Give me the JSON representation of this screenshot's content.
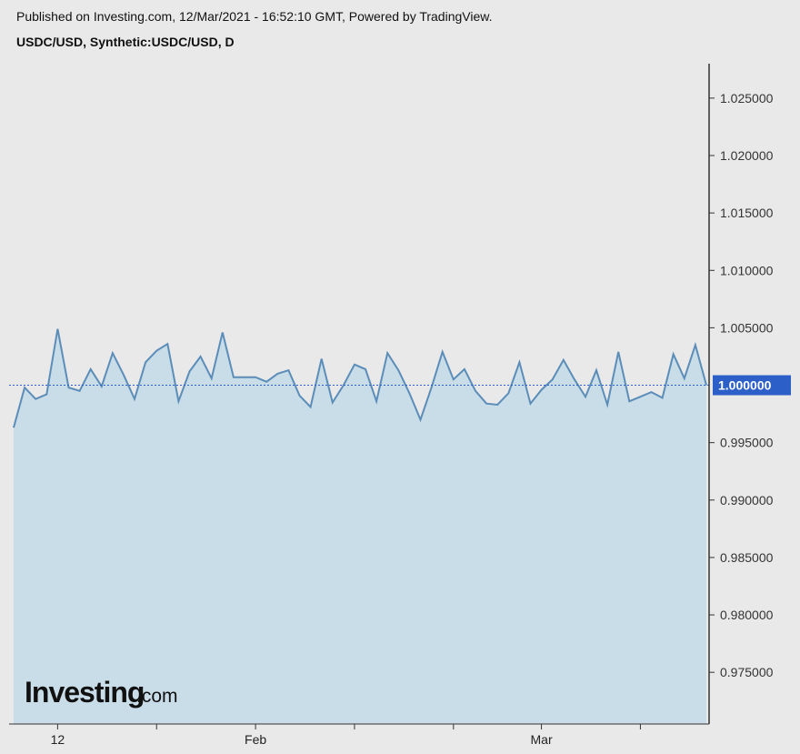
{
  "header": {
    "published": "Published on Investing.com, 12/Mar/2021 - 16:52:10 GMT, Powered by TradingView.",
    "symbol": "USDC/USD, Synthetic:USDC/USD, D"
  },
  "logo": {
    "main": "Investing",
    "suffix": ".com"
  },
  "colors": {
    "line": "#5b8db8",
    "area": "#c8dde8",
    "price_tag": "#2c5fc7",
    "ref_line": "#2c5fc7",
    "axis": "#333333"
  },
  "chart_data": {
    "type": "area",
    "title": "USDC/USD, Synthetic:USDC/USD, D",
    "xlabel": "",
    "ylabel": "",
    "x_tick_labels": [
      "12",
      "Feb",
      "Mar"
    ],
    "y_tick_labels": [
      "1.025000",
      "1.020000",
      "1.015000",
      "1.010000",
      "1.005000",
      "0.995000",
      "0.990000",
      "0.985000",
      "0.980000",
      "0.975000"
    ],
    "y_ticks": [
      1.025,
      1.02,
      1.015,
      1.01,
      1.005,
      0.995,
      0.99,
      0.985,
      0.98,
      0.975
    ],
    "ylim": [
      0.9705,
      1.028
    ],
    "current_value": 1.0,
    "current_label": "1.000000",
    "grid": false,
    "series": [
      {
        "values": [
          0.9963,
          0.9998,
          0.9988,
          0.9992,
          1.0049,
          0.9998,
          0.9995,
          1.0014,
          0.9999,
          1.0028,
          1.0009,
          0.9988,
          1.002,
          1.003,
          1.0036,
          0.9986,
          1.0012,
          1.0025,
          1.0006,
          1.0046,
          1.0007,
          1.0007,
          1.0007,
          1.0003,
          1.001,
          1.0013,
          0.9991,
          0.9981,
          1.0023,
          0.9985,
          1.0,
          1.0018,
          1.0014,
          0.9986,
          1.0028,
          1.0013,
          0.9993,
          0.997,
          0.9998,
          1.0029,
          1.0005,
          1.0014,
          0.9995,
          0.9984,
          0.9983,
          0.9993,
          1.002,
          0.9984,
          0.9996,
          1.0005,
          1.0022,
          1.0005,
          0.999,
          1.0013,
          0.9983,
          1.0029,
          0.9986,
          0.999,
          0.9994,
          0.9989,
          1.0027,
          1.0006,
          1.0035,
          1.0
        ]
      }
    ]
  }
}
